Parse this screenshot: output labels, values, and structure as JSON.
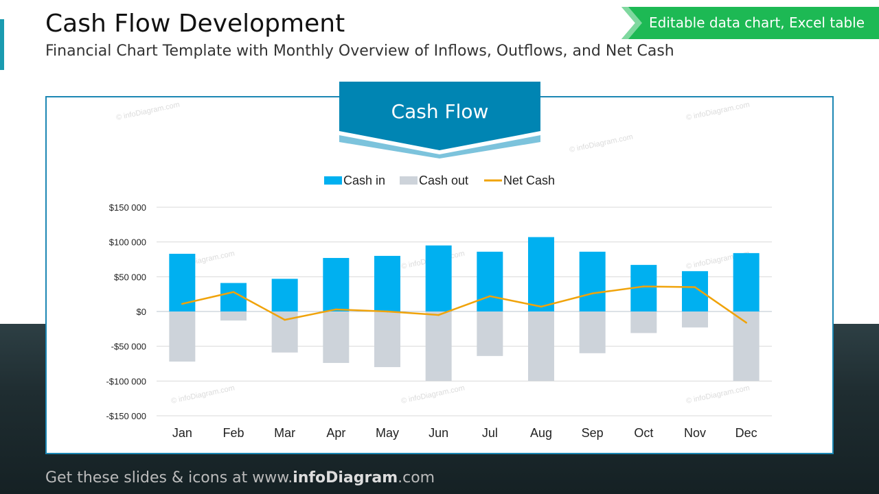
{
  "header": {
    "title": "Cash Flow Development",
    "subtitle": "Financial Chart Template with Monthly Overview of Inflows, Outflows, and Net Cash",
    "badge": "Editable data chart, Excel table"
  },
  "footer": {
    "prefix": "Get these slides & icons at www.",
    "brand": "infoDiagram",
    ".com": ".com",
    "suffix": ".com"
  },
  "watermark": "© infoDiagram.com",
  "colors": {
    "cash_in": "#00b0f0",
    "cash_out": "#cdd3da",
    "net": "#f0a30a",
    "frame": "#1b86b3",
    "badge": "#1db954"
  },
  "chart_data": {
    "type": "bar",
    "title": "Cash Flow",
    "categories": [
      "Jan",
      "Feb",
      "Mar",
      "Apr",
      "May",
      "Jun",
      "Jul",
      "Aug",
      "Sep",
      "Oct",
      "Nov",
      "Dec"
    ],
    "ylim": [
      -150000,
      150000
    ],
    "yticks": [
      150000,
      100000,
      50000,
      0,
      -50000,
      -100000,
      -150000
    ],
    "ytick_labels": [
      "$150 000",
      "$100 000",
      "$50 000",
      "$0",
      "-$50 000",
      "-$100 000",
      "-$150 000"
    ],
    "grid": true,
    "legend": "top",
    "series": [
      {
        "name": "Cash in",
        "type": "bar",
        "values": [
          83000,
          41000,
          47000,
          77000,
          80000,
          95000,
          86000,
          107000,
          86000,
          67000,
          58000,
          84000
        ]
      },
      {
        "name": "Cash out",
        "type": "bar",
        "values": [
          -72000,
          -13000,
          -59000,
          -74000,
          -80000,
          -100000,
          -64000,
          -100000,
          -60000,
          -31000,
          -23000,
          -100000
        ]
      },
      {
        "name": "Net Cash",
        "type": "line",
        "values": [
          11000,
          28000,
          -12000,
          3000,
          0,
          -5000,
          22000,
          7000,
          26000,
          36000,
          35000,
          -16000
        ]
      }
    ]
  }
}
